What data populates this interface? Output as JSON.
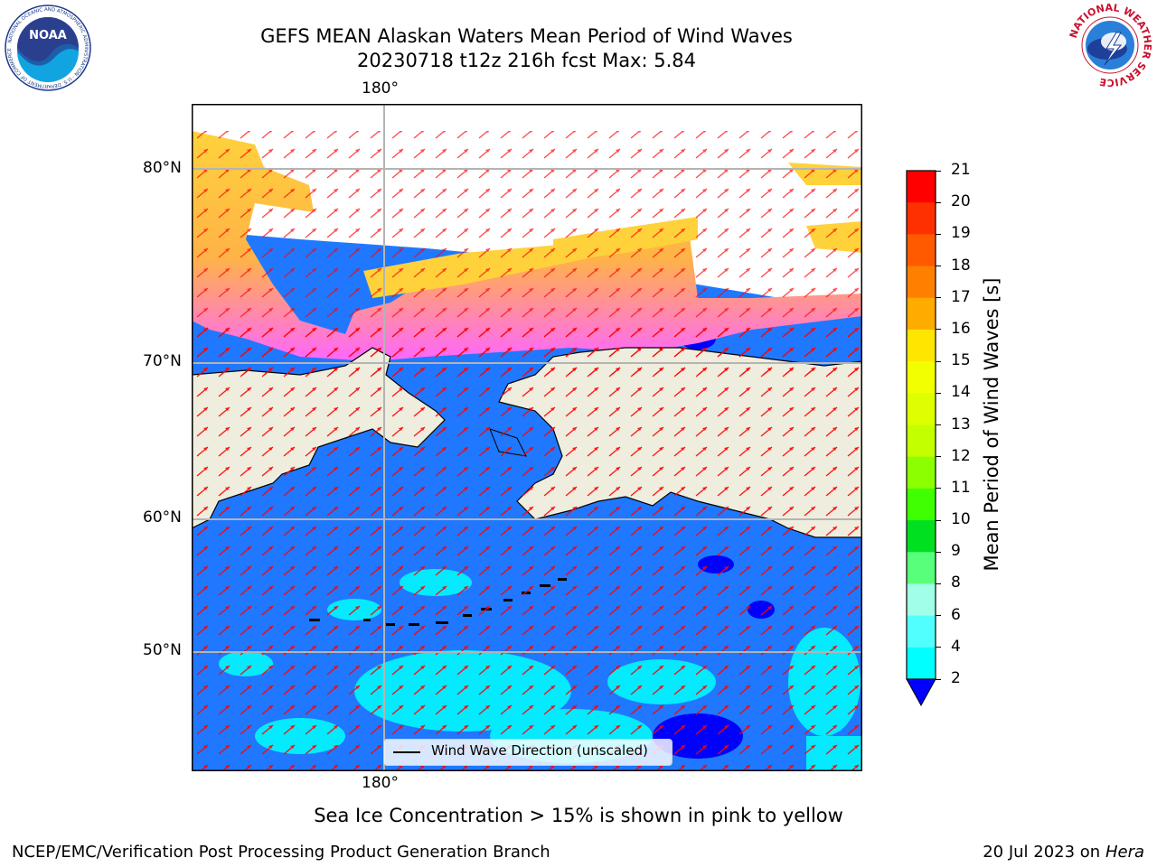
{
  "header": {
    "title_line1": "GEFS MEAN Alaskan Waters Mean Period of Wind Waves",
    "title_line2": "20230718 t12z 216h fcst   Max: 5.84"
  },
  "logos": {
    "noaa_text": "NOAA",
    "noaa_ring": "NATIONAL OCEANIC AND ATMOSPHERIC ADMINISTRATION · U.S. DEPARTMENT OF COMMERCE",
    "nws_ring": "NATIONAL WEATHER SERVICE"
  },
  "map": {
    "lon_label_top": "180°",
    "lon_label_bottom": "180°",
    "lat_labels": [
      "80°N",
      "70°N",
      "60°N",
      "50°N"
    ],
    "legend_label": "Wind Wave Direction (unscaled)",
    "colors": {
      "ocean": "#1f78ff",
      "land": "#efedde",
      "ice_pink": "#ff66ff",
      "ice_yellow": "#ffd23c",
      "arrow": "#ff0000",
      "cyan": "#00ffff"
    }
  },
  "colorbar": {
    "label": "Mean Period of Wind Waves [s]",
    "ticks": [
      "21",
      "20",
      "19",
      "18",
      "17",
      "16",
      "15",
      "14",
      "13",
      "12",
      "11",
      "10",
      "9",
      "8",
      "6",
      "4",
      "2"
    ],
    "colors": [
      "#ff0000",
      "#ff3000",
      "#ff5a00",
      "#ff8000",
      "#ffab00",
      "#ffe600",
      "#f2ff00",
      "#deff00",
      "#c4ff00",
      "#8cff00",
      "#40ff00",
      "#00e020",
      "#57ff7a",
      "#a0ffe6",
      "#52ffff",
      "#00ffff",
      "#1f78ff"
    ],
    "under_color": "#0000ff"
  },
  "caption": "Sea Ice Concentration > 15% is shown in pink to yellow",
  "footer": {
    "left": "NCEP/EMC/Verification Post Processing Product Generation Branch",
    "date": "20 Jul 2023 on ",
    "machine": "Hera"
  }
}
